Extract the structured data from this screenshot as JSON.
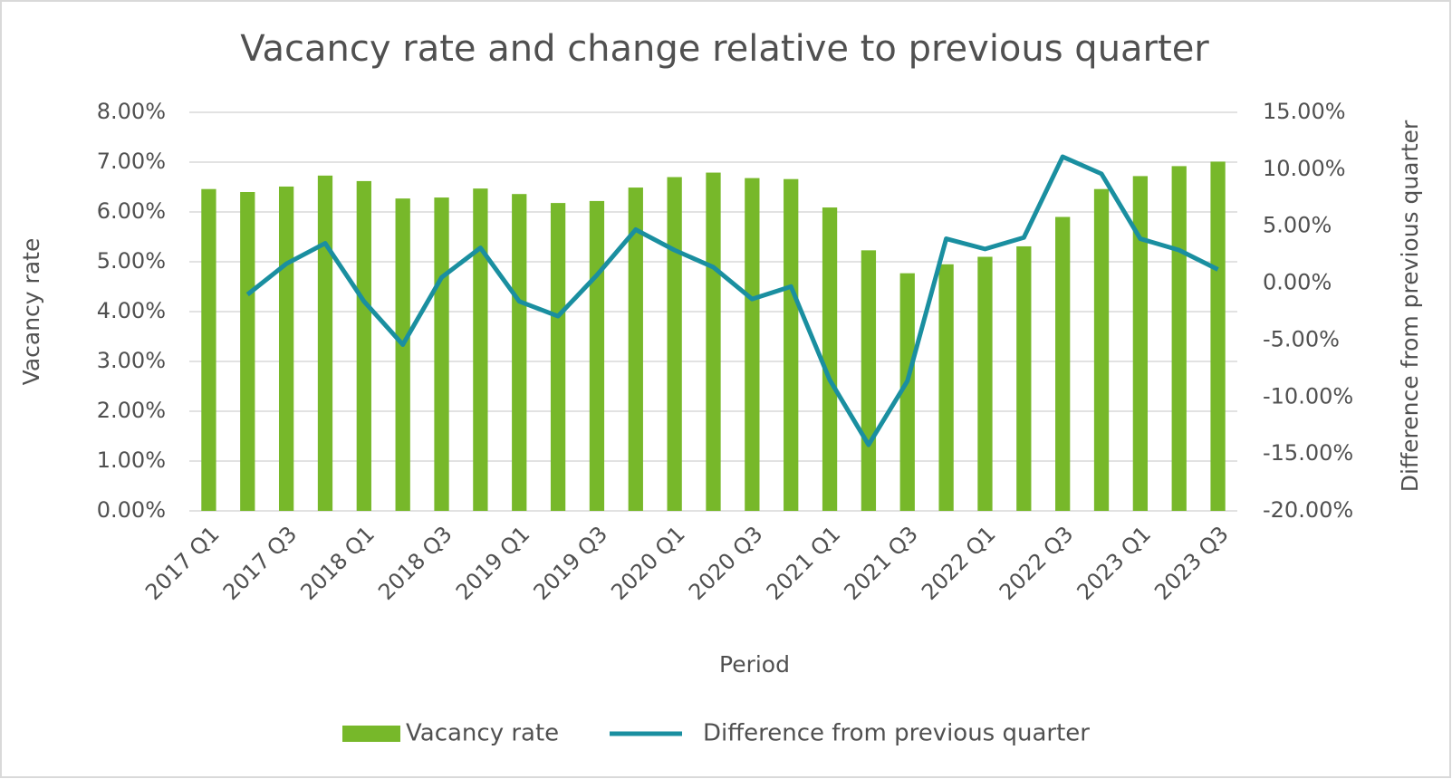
{
  "chart_data": {
    "type": "bar_line",
    "title": "Vacancy rate and change relative to previous quarter",
    "x_label": "Period",
    "y_label": "Vacancy rate",
    "y2_label": "Difference from previous quarter",
    "categories": [
      "2017 Q1",
      null,
      "2017 Q3",
      null,
      "2018 Q1",
      null,
      "2018 Q3",
      null,
      "2019 Q1",
      null,
      "2019 Q3",
      null,
      "2020 Q1",
      null,
      "2020 Q3",
      null,
      "2021 Q1",
      null,
      "2021 Q3",
      null,
      "2022 Q1",
      null,
      "2022 Q3",
      null,
      "2023 Q1",
      null,
      "2023 Q3"
    ],
    "series": [
      {
        "name": "Vacancy rate",
        "type": "bar",
        "color": "#77b82a",
        "values": [
          6.46,
          6.4,
          6.51,
          6.73,
          6.62,
          6.27,
          6.29,
          6.47,
          6.36,
          6.18,
          6.22,
          6.49,
          6.7,
          6.79,
          6.68,
          6.66,
          6.09,
          5.23,
          4.77,
          4.95,
          5.1,
          5.31,
          5.9,
          6.46,
          6.72,
          6.92,
          7.01
        ]
      },
      {
        "name": "Difference from previous quarter",
        "type": "line",
        "axis": "y2",
        "color": "#1a8fa0",
        "values": [
          null,
          -1.0,
          1.7,
          3.5,
          -1.6,
          -5.4,
          0.5,
          3.1,
          -1.6,
          -2.9,
          0.7,
          4.7,
          2.9,
          1.4,
          -1.4,
          -0.3,
          -8.5,
          -14.2,
          -8.6,
          3.9,
          3.0,
          4.0,
          11.1,
          9.6,
          3.9,
          2.9,
          1.2
        ]
      }
    ],
    "ylim": [
      0,
      8
    ],
    "yticks": [
      {
        "value": 0,
        "label": "0.00%"
      },
      {
        "value": 1,
        "label": "1.00%"
      },
      {
        "value": 2,
        "label": "2.00%"
      },
      {
        "value": 3,
        "label": "3.00%"
      },
      {
        "value": 4,
        "label": "4.00%"
      },
      {
        "value": 5,
        "label": "5.00%"
      },
      {
        "value": 6,
        "label": "6.00%"
      },
      {
        "value": 7,
        "label": "7.00%"
      },
      {
        "value": 8,
        "label": "8.00%"
      }
    ],
    "y2lim": [
      -20,
      15
    ],
    "y2ticks": [
      {
        "value": -20,
        "label": "-20.00%"
      },
      {
        "value": -15,
        "label": "-15.00%"
      },
      {
        "value": -10,
        "label": "-10.00%"
      },
      {
        "value": -5,
        "label": "-5.00%"
      },
      {
        "value": 0,
        "label": "0.00%"
      },
      {
        "value": 5,
        "label": "5.00%"
      },
      {
        "value": 10,
        "label": "10.00%"
      },
      {
        "value": 15,
        "label": "15.00%"
      }
    ],
    "grid": true,
    "legend": "bottom"
  }
}
